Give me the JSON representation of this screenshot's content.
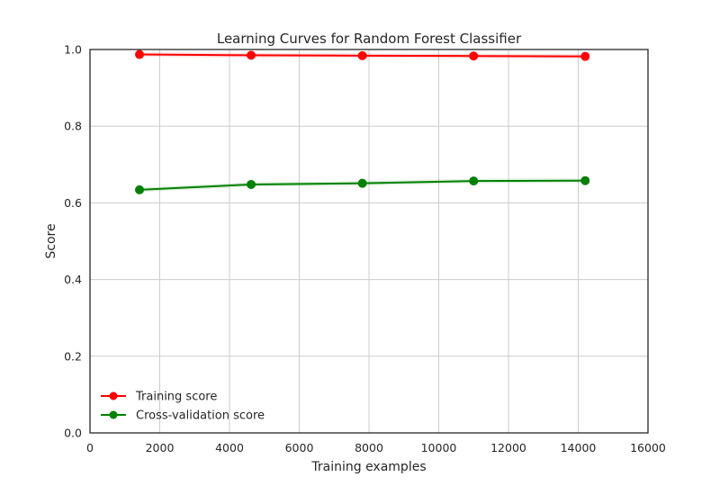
{
  "chart_data": {
    "type": "line",
    "title": "Learning Curves for Random Forest Classifier",
    "xlabel": "Training examples",
    "ylabel": "Score",
    "xlim": [
      0,
      16000
    ],
    "ylim": [
      0.0,
      1.0
    ],
    "xticks": [
      0,
      2000,
      4000,
      6000,
      8000,
      10000,
      12000,
      14000,
      16000
    ],
    "yticks": [
      0.0,
      0.2,
      0.4,
      0.6,
      0.8,
      1.0
    ],
    "xtick_labels": [
      "0",
      "2000",
      "4000",
      "6000",
      "8000",
      "10000",
      "12000",
      "14000",
      "16000"
    ],
    "ytick_labels": [
      "0.0",
      "0.2",
      "0.4",
      "0.6",
      "0.8",
      "1.0"
    ],
    "grid": true,
    "legend_position": "lower-left",
    "x": [
      1420,
      4620,
      7810,
      11000,
      14200
    ],
    "series": [
      {
        "name": "Training score",
        "color": "#ff0000",
        "values": [
          0.987,
          0.985,
          0.984,
          0.983,
          0.982
        ]
      },
      {
        "name": "Cross-validation score",
        "color": "#008000",
        "values": [
          0.634,
          0.648,
          0.651,
          0.657,
          0.658
        ]
      }
    ]
  }
}
